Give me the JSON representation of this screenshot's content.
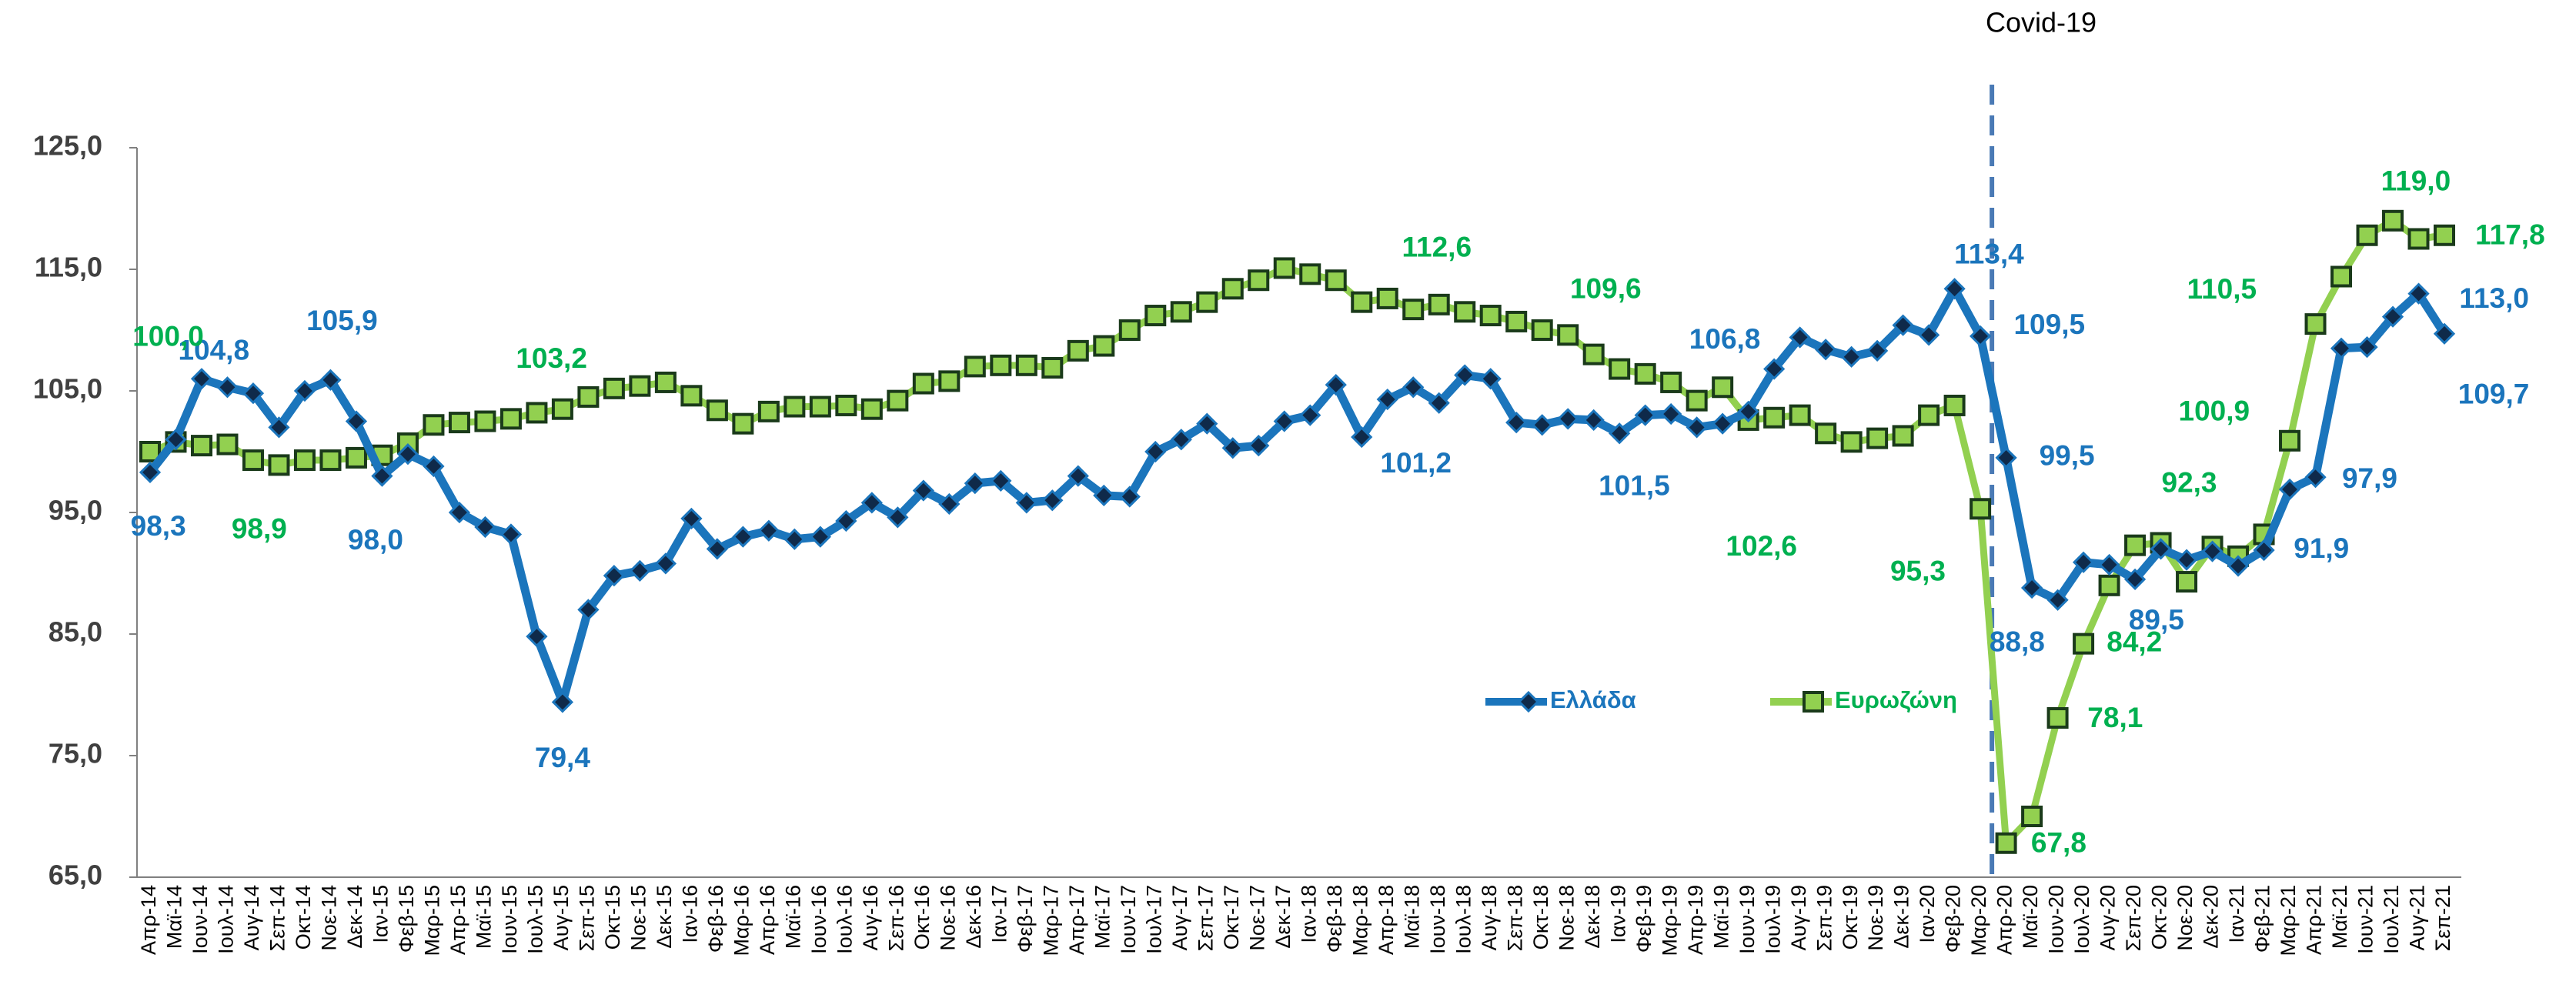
{
  "chart_data": {
    "type": "line",
    "annotations": [
      {
        "text": "Covid-19"
      }
    ],
    "categories": [
      "Απρ-14",
      "Μαϊ-14",
      "Ιουν-14",
      "Ιουλ-14",
      "Αυγ-14",
      "Σεπ-14",
      "Οκτ-14",
      "Νοε-14",
      "Δεκ-14",
      "Ιαν-15",
      "Φεβ-15",
      "Μαρ-15",
      "Απρ-15",
      "Μαϊ-15",
      "Ιουν-15",
      "Ιουλ-15",
      "Αυγ-15",
      "Σεπ-15",
      "Οκτ-15",
      "Νοε-15",
      "Δεκ-15",
      "Ιαν-16",
      "Φεβ-16",
      "Μαρ-16",
      "Απρ-16",
      "Μαϊ-16",
      "Ιουν-16",
      "Ιουλ-16",
      "Αυγ-16",
      "Σεπ-16",
      "Οκτ-16",
      "Νοε-16",
      "Δεκ-16",
      "Ιαν-17",
      "Φεβ-17",
      "Μαρ-17",
      "Απρ-17",
      "Μαϊ-17",
      "Ιουν-17",
      "Ιουλ-17",
      "Αυγ-17",
      "Σεπ-17",
      "Οκτ-17",
      "Νοε-17",
      "Δεκ-17",
      "Ιαν-18",
      "Φεβ-18",
      "Μαρ-18",
      "Απρ-18",
      "Μαϊ-18",
      "Ιουν-18",
      "Ιουλ-18",
      "Αυγ-18",
      "Σεπ-18",
      "Οκτ-18",
      "Νοε-18",
      "Δεκ-18",
      "Ιαν-19",
      "Φεβ-19",
      "Μαρ-19",
      "Απρ-19",
      "Μαϊ-19",
      "Ιουν-19",
      "Ιουλ-19",
      "Αυγ-19",
      "Σεπ-19",
      "Οκτ-19",
      "Νοε-19",
      "Δεκ-19",
      "Ιαν-20",
      "Φεβ-20",
      "Μαρ-20",
      "Απρ-20",
      "Μαϊ-20",
      "Ιουν-20",
      "Ιουλ-20",
      "Αυγ-20",
      "Σεπ-20",
      "Οκτ-20",
      "Νοε-20",
      "Δεκ-20",
      "Ιαν-21",
      "Φεβ-21",
      "Μαρ-21",
      "Απρ-21",
      "Μαϊ-21",
      "Ιουν-21",
      "Ιουλ-21",
      "Αυγ-21",
      "Σεπ-21"
    ],
    "series": [
      {
        "name": "Ελλάδα",
        "color": "#1b75bc",
        "label_color": "#1b75bc",
        "marker": "diamond",
        "values": [
          98.3,
          101.0,
          106.0,
          105.3,
          104.8,
          102.0,
          105.0,
          105.9,
          102.5,
          98.0,
          99.8,
          98.8,
          95.0,
          93.8,
          93.2,
          84.8,
          79.4,
          87.0,
          89.8,
          90.2,
          90.8,
          94.5,
          92.0,
          93.0,
          93.5,
          92.8,
          93.0,
          94.3,
          95.8,
          94.6,
          96.8,
          95.7,
          97.4,
          97.6,
          95.8,
          96.0,
          98.0,
          96.4,
          96.3,
          100.0,
          101.0,
          102.3,
          100.3,
          100.5,
          102.5,
          103.0,
          105.5,
          101.2,
          104.3,
          105.3,
          104.0,
          106.3,
          106.0,
          102.4,
          102.2,
          102.7,
          102.6,
          101.5,
          103.0,
          103.1,
          102.0,
          102.3,
          103.3,
          106.8,
          109.4,
          108.4,
          107.8,
          108.3,
          110.4,
          109.6,
          113.4,
          109.5,
          99.5,
          88.8,
          87.8,
          90.9,
          90.7,
          89.5,
          92.0,
          91.1,
          91.8,
          90.6,
          91.9,
          96.9,
          97.9,
          108.5,
          108.6,
          111.1,
          113.0,
          109.7
        ],
        "value_labels": [
          "98,3",
          null,
          null,
          null,
          "104,8",
          null,
          null,
          "105,9",
          null,
          "98,0",
          null,
          null,
          null,
          null,
          null,
          null,
          "79,4",
          null,
          null,
          null,
          null,
          null,
          null,
          null,
          null,
          null,
          null,
          null,
          null,
          null,
          null,
          null,
          null,
          null,
          null,
          null,
          null,
          null,
          null,
          null,
          null,
          null,
          null,
          null,
          null,
          null,
          null,
          "101,2",
          null,
          null,
          null,
          null,
          null,
          null,
          null,
          null,
          null,
          "101,5",
          null,
          null,
          null,
          null,
          null,
          "106,8",
          null,
          null,
          null,
          null,
          null,
          null,
          "113,4",
          "109,5",
          "99,5",
          "88,8",
          null,
          null,
          null,
          "89,5",
          null,
          null,
          null,
          null,
          "91,9",
          null,
          "97,9",
          null,
          null,
          null,
          "113,0",
          "109,7"
        ]
      },
      {
        "name": "Ευρωζώνη",
        "color": "#92d050",
        "label_color": "#00b050",
        "marker": "square",
        "values": [
          100.0,
          100.8,
          100.5,
          100.6,
          99.3,
          98.9,
          99.3,
          99.3,
          99.5,
          99.7,
          100.7,
          102.2,
          102.4,
          102.5,
          102.7,
          103.2,
          103.5,
          104.5,
          105.2,
          105.4,
          105.7,
          104.6,
          103.4,
          102.3,
          103.3,
          103.7,
          103.7,
          103.8,
          103.5,
          104.2,
          105.6,
          105.8,
          107.0,
          107.1,
          107.1,
          106.9,
          108.3,
          108.7,
          110.0,
          111.2,
          111.5,
          112.3,
          113.4,
          114.1,
          115.1,
          114.6,
          114.1,
          112.3,
          112.6,
          111.7,
          112.1,
          111.5,
          111.2,
          110.7,
          110.0,
          109.6,
          108.0,
          106.8,
          106.4,
          105.7,
          104.2,
          105.3,
          102.6,
          102.8,
          103.0,
          101.5,
          100.8,
          101.1,
          101.3,
          103.0,
          103.8,
          95.3,
          67.8,
          70.0,
          78.1,
          84.2,
          89.0,
          92.3,
          92.5,
          89.3,
          92.2,
          91.4,
          93.2,
          100.9,
          110.5,
          114.4,
          117.8,
          119.0,
          117.5,
          117.8
        ],
        "value_labels": [
          "100,0",
          null,
          null,
          null,
          null,
          "98,9",
          null,
          null,
          null,
          null,
          null,
          null,
          null,
          null,
          null,
          "103,2",
          null,
          null,
          null,
          null,
          null,
          null,
          null,
          null,
          null,
          null,
          null,
          null,
          null,
          null,
          null,
          null,
          null,
          null,
          null,
          null,
          null,
          null,
          null,
          null,
          null,
          null,
          null,
          null,
          null,
          null,
          null,
          null,
          "112,6",
          null,
          null,
          null,
          null,
          null,
          null,
          "109,6",
          null,
          null,
          null,
          null,
          null,
          null,
          "102,6",
          null,
          null,
          null,
          null,
          null,
          null,
          null,
          null,
          "95,3",
          "67,8",
          null,
          "78,1",
          "84,2",
          null,
          "92,3",
          null,
          null,
          null,
          null,
          null,
          "100,9",
          "110,5",
          null,
          null,
          "119,0",
          null,
          "117,8"
        ]
      }
    ],
    "ylim": [
      65,
      125
    ],
    "yticks": [
      {
        "value": 65,
        "label": "65,0"
      },
      {
        "value": 75,
        "label": "75,0"
      },
      {
        "value": 85,
        "label": "85,0"
      },
      {
        "value": 95,
        "label": "95,0"
      },
      {
        "value": 105,
        "label": "105,0"
      },
      {
        "value": 115,
        "label": "115,0"
      },
      {
        "value": 125,
        "label": "125,0"
      }
    ],
    "grid": false,
    "legend": "center"
  }
}
